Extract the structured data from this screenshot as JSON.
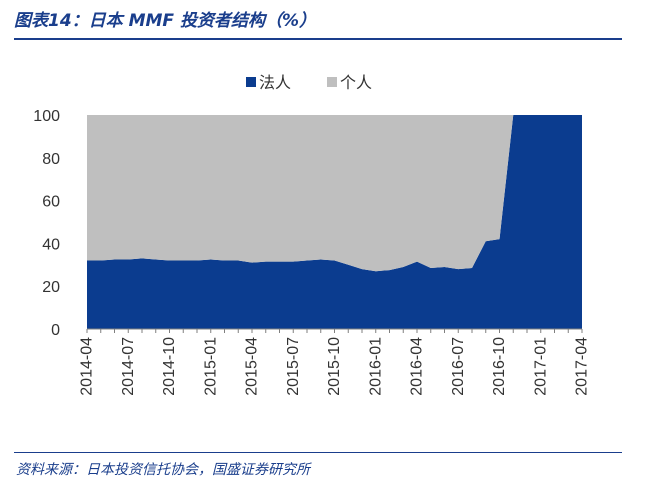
{
  "figure": {
    "title": "图表14：日本 MMF 投资者结构（%）",
    "source": "资料来源：日本投资信托协会，国盛证券研究所"
  },
  "colors": {
    "header": "#1a3e8c",
    "corporate": "#0b3c8f",
    "individual": "#bfbfbf"
  },
  "chart_data": {
    "type": "area",
    "stacked": true,
    "ylim": [
      0,
      100
    ],
    "yticks": [
      0,
      20,
      40,
      60,
      80,
      100
    ],
    "xtick_labels": [
      "2014-04",
      "2014-07",
      "2014-10",
      "2015-01",
      "2015-04",
      "2015-07",
      "2015-10",
      "2016-01",
      "2016-04",
      "2016-07",
      "2016-10",
      "2017-01",
      "2017-04"
    ],
    "legend_position": "top-center",
    "x": [
      "2014-04",
      "2014-05",
      "2014-06",
      "2014-07",
      "2014-08",
      "2014-09",
      "2014-10",
      "2014-11",
      "2014-12",
      "2015-01",
      "2015-02",
      "2015-03",
      "2015-04",
      "2015-05",
      "2015-06",
      "2015-07",
      "2015-08",
      "2015-09",
      "2015-10",
      "2015-11",
      "2015-12",
      "2016-01",
      "2016-02",
      "2016-03",
      "2016-04",
      "2016-05",
      "2016-06",
      "2016-07",
      "2016-08",
      "2016-09",
      "2016-10",
      "2016-11",
      "2016-12",
      "2017-01",
      "2017-02",
      "2017-03",
      "2017-04"
    ],
    "series": [
      {
        "name": "法人",
        "values": [
          32,
          32,
          32.5,
          32.5,
          33,
          32.5,
          32,
          32,
          32,
          32.5,
          32,
          32,
          31,
          31.5,
          31.5,
          31.5,
          32,
          32.5,
          32,
          30,
          28,
          27,
          27.5,
          29,
          31.5,
          28.5,
          29,
          28,
          28.5,
          41,
          42,
          100,
          100,
          100,
          100,
          100,
          100
        ]
      },
      {
        "name": "个人",
        "values": [
          68,
          68,
          67.5,
          67.5,
          67,
          67.5,
          68,
          68,
          68,
          67.5,
          68,
          68,
          69,
          68.5,
          68.5,
          68.5,
          68,
          67.5,
          68,
          70,
          72,
          73,
          72.5,
          71,
          68.5,
          71.5,
          71,
          72,
          71.5,
          59,
          58,
          0,
          0,
          0,
          0,
          0,
          0
        ]
      }
    ]
  }
}
